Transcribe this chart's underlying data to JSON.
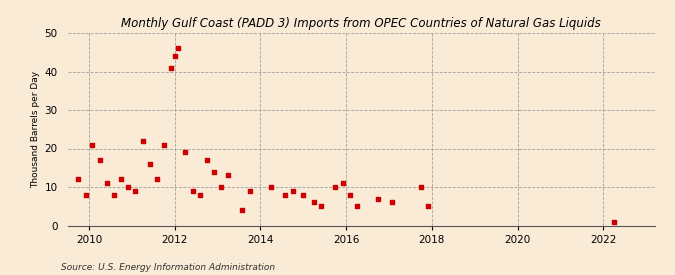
{
  "title": "Monthly Gulf Coast (PADD 3) Imports from OPEC Countries of Natural Gas Liquids",
  "ylabel": "Thousand Barrels per Day",
  "source": "Source: U.S. Energy Information Administration",
  "background_color": "#faebd7",
  "plot_bg_color": "#faebd7",
  "marker_color": "#cc0000",
  "marker_size": 10,
  "xlim": [
    2009.5,
    2023.2
  ],
  "ylim": [
    0,
    50
  ],
  "yticks": [
    0,
    10,
    20,
    30,
    40,
    50
  ],
  "xticks": [
    2010,
    2012,
    2014,
    2016,
    2018,
    2020,
    2022
  ],
  "x_data": [
    2009.75,
    2009.92,
    2010.08,
    2010.25,
    2010.42,
    2010.58,
    2010.75,
    2010.92,
    2011.08,
    2011.25,
    2011.42,
    2011.58,
    2011.75,
    2011.92,
    2012.0,
    2012.08,
    2012.25,
    2012.42,
    2012.58,
    2012.75,
    2012.92,
    2013.08,
    2013.25,
    2013.58,
    2013.75,
    2014.25,
    2014.58,
    2014.75,
    2015.0,
    2015.25,
    2015.42,
    2015.75,
    2015.92,
    2016.08,
    2016.25,
    2016.75,
    2017.08,
    2017.75,
    2017.92,
    2022.25
  ],
  "y_data": [
    12,
    8,
    21,
    17,
    11,
    8,
    12,
    10,
    9,
    22,
    16,
    12,
    21,
    41,
    44,
    46,
    19,
    9,
    8,
    17,
    14,
    10,
    13,
    4,
    9,
    10,
    8,
    9,
    8,
    6,
    5,
    10,
    11,
    8,
    5,
    7,
    6,
    10,
    5,
    1
  ]
}
